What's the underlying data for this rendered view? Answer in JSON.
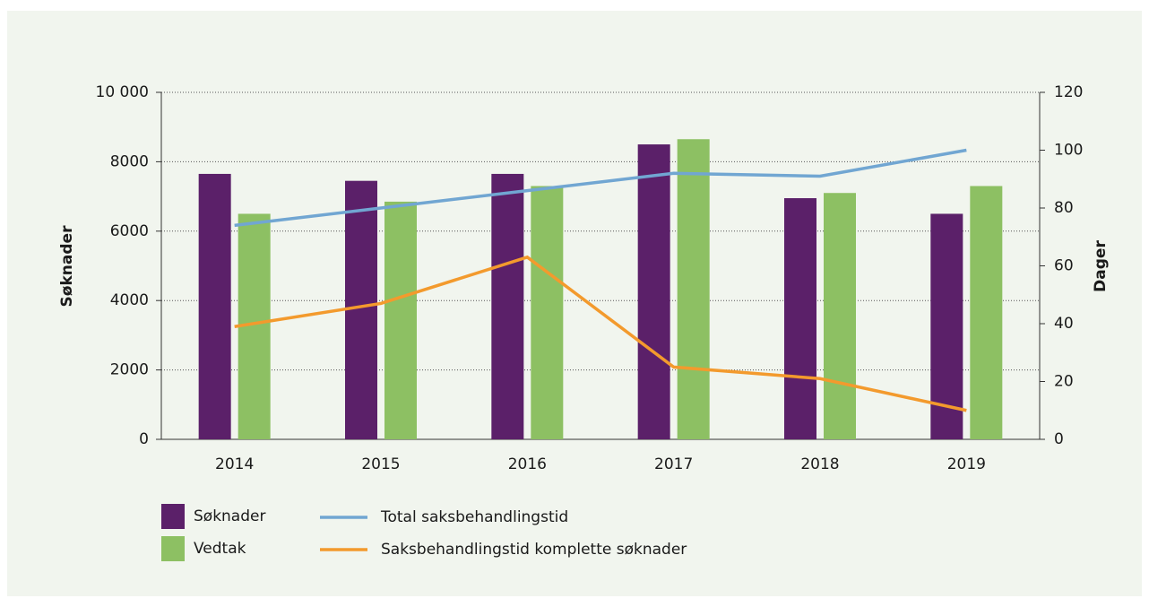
{
  "chart_data": {
    "type": "bar",
    "categories": [
      "2014",
      "2015",
      "2016",
      "2017",
      "2018",
      "2019"
    ],
    "ylabel": "Søknader",
    "y2label": "Dager",
    "ylim": [
      0,
      10000
    ],
    "yticks": [
      0,
      2000,
      4000,
      6000,
      8000,
      {
        "value": 10000,
        "label": "10 000"
      }
    ],
    "y2lim": [
      0,
      120
    ],
    "y2ticks": [
      0,
      20,
      40,
      60,
      80,
      100,
      120
    ],
    "grid": true,
    "legend": "bottom",
    "series": [
      {
        "name": "Søknader",
        "color": "#5b2069",
        "type": "bar",
        "values": [
          7650,
          7450,
          7650,
          8500,
          6950,
          6500
        ]
      },
      {
        "name": "Vedtak",
        "color": "#8dc063",
        "type": "bar",
        "values": [
          6500,
          6850,
          7300,
          8650,
          7100,
          7300
        ]
      },
      {
        "name": "Total saksbehandlingstid",
        "color": "#71a6d2",
        "type": "line",
        "axis": "y2",
        "values": [
          74,
          80,
          86,
          92,
          91,
          100
        ]
      },
      {
        "name": "Saksbehandlingstid komplette søknader",
        "color": "#f39a2d",
        "type": "line",
        "axis": "y2",
        "values": [
          39,
          47,
          63,
          25,
          21,
          10
        ]
      }
    ]
  }
}
